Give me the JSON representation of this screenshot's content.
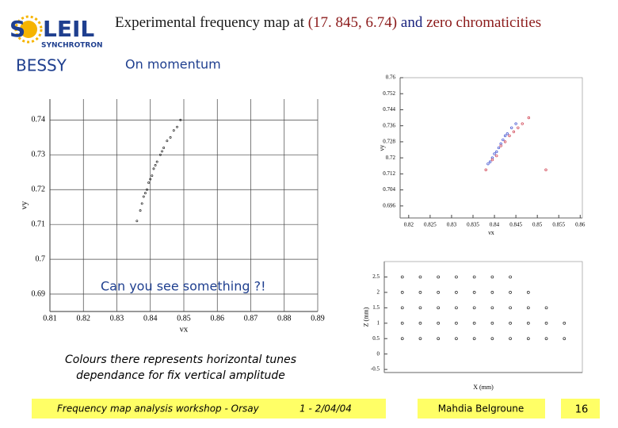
{
  "header": {
    "logo_s": "S",
    "logo_rest": "LEIL",
    "logo_sub": "SYNCHROTRON",
    "title_parts": [
      {
        "text": "Experimental frequency map at ",
        "color": "#1a1a1a"
      },
      {
        "text": "(17. 845, 6.74)",
        "color": "#8b1a1a"
      },
      {
        "text": " and ",
        "color": "#1a237e"
      },
      {
        "text": "zero chromaticities",
        "color": "#8b1a1a"
      }
    ]
  },
  "labels": {
    "bessy": "BESSY",
    "momentum": "On momentum",
    "question": "Can you see something ?!",
    "caption": [
      "Colours there represents horizontal tunes",
      "dependance for fix vertical amplitude"
    ]
  },
  "footer": {
    "workshop": "Frequency map analysis workshop - Orsay",
    "date": "1 - 2/04/04",
    "author": "Mahdia Belgroune",
    "page": "16"
  },
  "chart_data": [
    {
      "type": "scatter",
      "xlabel": "νx",
      "ylabel": "νy",
      "grid": true,
      "xlim": [
        0.81,
        0.89
      ],
      "ylim": [
        0.685,
        0.746
      ],
      "xticks": [
        0.81,
        0.82,
        0.83,
        0.84,
        0.85,
        0.86,
        0.87,
        0.88,
        0.89
      ],
      "yticks": [
        0.69,
        0.7,
        0.71,
        0.72,
        0.73,
        0.74
      ],
      "series": [
        {
          "color": "#222222",
          "x": [
            0.836,
            0.837,
            0.8375,
            0.838,
            0.8385,
            0.839,
            0.8395,
            0.84,
            0.8405,
            0.841,
            0.8415,
            0.842,
            0.843,
            0.8435,
            0.844,
            0.845,
            0.846,
            0.847,
            0.848,
            0.849
          ],
          "values": [
            0.711,
            0.714,
            0.716,
            0.718,
            0.719,
            0.72,
            0.722,
            0.723,
            0.724,
            0.726,
            0.727,
            0.728,
            0.73,
            0.731,
            0.732,
            0.734,
            0.735,
            0.737,
            0.738,
            0.74
          ]
        }
      ]
    },
    {
      "type": "scatter",
      "xlabel": "νx",
      "ylabel": "νy",
      "grid": false,
      "xlim": [
        0.818,
        0.8605
      ],
      "ylim": [
        0.69,
        0.76
      ],
      "xticks": [
        0.82,
        0.825,
        0.83,
        0.835,
        0.84,
        0.845,
        0.85,
        0.855,
        0.86
      ],
      "yticks": [
        0.696,
        0.704,
        0.712,
        0.72,
        0.728,
        0.736,
        0.744,
        0.752,
        0.76
      ],
      "series": [
        {
          "color": "#3344cc",
          "x": [
            0.8385,
            0.839,
            0.8395,
            0.84,
            0.8405,
            0.841,
            0.8415,
            0.842,
            0.8425,
            0.843,
            0.844,
            0.845
          ],
          "values": [
            0.717,
            0.718,
            0.72,
            0.722,
            0.723,
            0.725,
            0.727,
            0.729,
            0.731,
            0.732,
            0.735,
            0.737
          ]
        },
        {
          "color": "#cc3344",
          "x": [
            0.838,
            0.8395,
            0.8405,
            0.8415,
            0.8425,
            0.8435,
            0.8445,
            0.8455,
            0.8465,
            0.848,
            0.852
          ],
          "values": [
            0.714,
            0.719,
            0.721,
            0.726,
            0.728,
            0.731,
            0.733,
            0.735,
            0.737,
            0.74,
            0.714
          ]
        }
      ]
    },
    {
      "type": "scatter",
      "xlabel": "X (mm)",
      "ylabel": "Z (mm)",
      "grid": false,
      "xlim": [
        -22,
        0
      ],
      "ylim": [
        -0.6,
        3
      ],
      "yticks": [
        -0.5,
        0,
        0.5,
        1,
        1.5,
        2,
        2.5
      ],
      "series": [
        {
          "color": "#222222",
          "x": [
            -20,
            -18,
            -16,
            -14,
            -12,
            -10,
            -8,
            -20,
            -18,
            -16,
            -14,
            -12,
            -10,
            -8,
            -6,
            -20,
            -18,
            -16,
            -14,
            -12,
            -10,
            -8,
            -6,
            -4,
            -20,
            -18,
            -16,
            -14,
            -12,
            -10,
            -8,
            -6,
            -4,
            -2,
            -20,
            -18,
            -16,
            -14,
            -12,
            -10,
            -8,
            -6,
            -4,
            -2
          ],
          "values": [
            2.5,
            2.5,
            2.5,
            2.5,
            2.5,
            2.5,
            2.5,
            2,
            2,
            2,
            2,
            2,
            2,
            2,
            2,
            1.5,
            1.5,
            1.5,
            1.5,
            1.5,
            1.5,
            1.5,
            1.5,
            1.5,
            1,
            1,
            1,
            1,
            1,
            1,
            1,
            1,
            1,
            1,
            0.5,
            0.5,
            0.5,
            0.5,
            0.5,
            0.5,
            0.5,
            0.5,
            0.5,
            0.5
          ]
        }
      ]
    }
  ]
}
